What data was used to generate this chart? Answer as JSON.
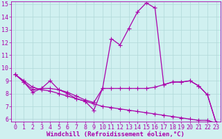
{
  "xlabel": "Windchill (Refroidissement éolien,°C)",
  "bg_color": "#d0f0f0",
  "line_color": "#aa00aa",
  "grid_color": "#b0d8d8",
  "axis_color": "#aa00aa",
  "xlim": [
    -0.5,
    23.5
  ],
  "ylim": [
    5.8,
    15.2
  ],
  "xticks": [
    0,
    1,
    2,
    3,
    4,
    5,
    6,
    7,
    8,
    9,
    10,
    11,
    12,
    13,
    14,
    15,
    16,
    17,
    18,
    19,
    20,
    21,
    22,
    23
  ],
  "yticks": [
    6,
    7,
    8,
    9,
    10,
    11,
    12,
    13,
    14,
    15
  ],
  "line1_x": [
    0,
    1,
    2,
    3,
    4,
    5,
    6,
    7,
    8,
    9,
    10,
    11,
    12,
    13,
    14,
    15,
    16,
    17,
    18,
    19,
    20,
    21,
    22,
    23
  ],
  "line1_y": [
    9.5,
    8.9,
    8.1,
    8.4,
    9.0,
    8.3,
    8.0,
    7.6,
    7.4,
    6.7,
    8.4,
    12.3,
    11.8,
    13.1,
    14.4,
    15.1,
    14.7,
    8.7,
    8.9,
    8.9,
    9.0,
    8.6,
    7.9,
    5.7
  ],
  "line2_x": [
    0,
    1,
    2,
    3,
    4,
    5,
    6,
    7,
    8,
    9,
    10,
    11,
    12,
    13,
    14,
    15,
    16,
    17,
    18,
    19,
    20,
    21,
    22,
    23
  ],
  "line2_y": [
    9.5,
    8.9,
    8.3,
    8.4,
    8.4,
    8.3,
    8.1,
    7.8,
    7.5,
    7.3,
    8.4,
    8.4,
    8.4,
    8.4,
    8.4,
    8.4,
    8.5,
    8.7,
    8.9,
    8.9,
    9.0,
    8.6,
    7.9,
    5.7
  ],
  "line3_x": [
    0,
    1,
    2,
    3,
    4,
    5,
    6,
    7,
    8,
    9,
    10,
    11,
    12,
    13,
    14,
    15,
    16,
    17,
    18,
    19,
    20,
    21,
    22,
    23
  ],
  "line3_y": [
    9.5,
    9.0,
    8.5,
    8.3,
    8.2,
    8.0,
    7.8,
    7.6,
    7.4,
    7.2,
    7.0,
    6.9,
    6.8,
    6.7,
    6.6,
    6.5,
    6.4,
    6.3,
    6.2,
    6.1,
    6.0,
    5.9,
    5.9,
    5.7
  ],
  "marker": "+",
  "marker_size": 4,
  "line_width": 0.9,
  "label_fontsize": 6.5,
  "tick_fontsize": 6.0
}
